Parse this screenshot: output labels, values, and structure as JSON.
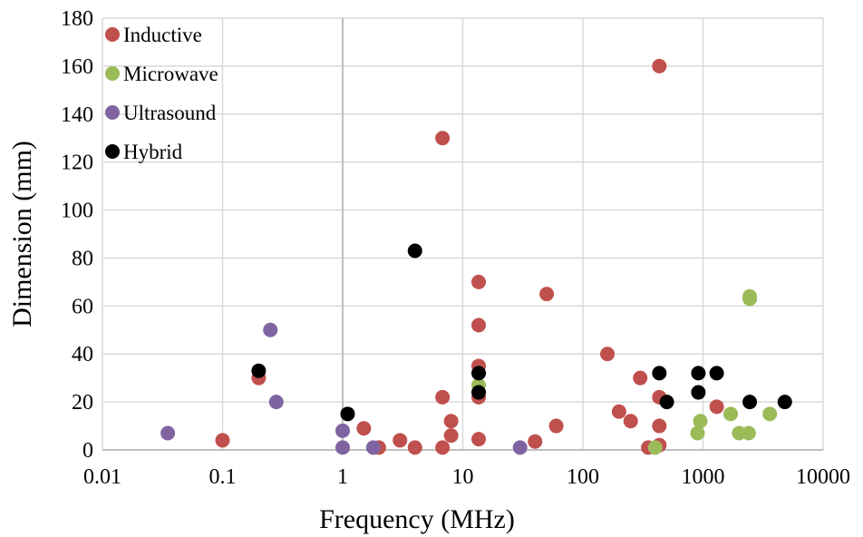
{
  "chart_data": {
    "type": "scatter",
    "xlabel": "Frequency (MHz)",
    "ylabel": "Dimension (mm)",
    "x_scale": "log",
    "xlim": [
      0.01,
      10000
    ],
    "ylim": [
      0,
      180
    ],
    "x_ticks": [
      "0.01",
      "0.1",
      "1",
      "10",
      "100",
      "1000",
      "10000"
    ],
    "y_ticks": [
      "0",
      "20",
      "40",
      "60",
      "80",
      "100",
      "120",
      "140",
      "160",
      "180"
    ],
    "grid": true,
    "legend_position": "top-left",
    "series": [
      {
        "name": "Inductive",
        "color": "#c0504d",
        "points": [
          [
            0.1,
            4
          ],
          [
            0.2,
            30
          ],
          [
            1.5,
            9
          ],
          [
            2,
            1
          ],
          [
            3,
            4
          ],
          [
            4,
            1
          ],
          [
            6.78,
            1
          ],
          [
            6.78,
            22
          ],
          [
            6.78,
            130
          ],
          [
            8,
            6
          ],
          [
            8,
            12
          ],
          [
            13.56,
            4.5
          ],
          [
            13.56,
            22
          ],
          [
            13.56,
            35
          ],
          [
            13.56,
            52
          ],
          [
            13.56,
            70
          ],
          [
            40,
            3.5
          ],
          [
            50,
            65
          ],
          [
            60,
            10
          ],
          [
            160,
            40
          ],
          [
            200,
            16
          ],
          [
            250,
            12
          ],
          [
            300,
            30
          ],
          [
            350,
            1
          ],
          [
            433,
            2
          ],
          [
            433,
            10
          ],
          [
            433,
            22
          ],
          [
            433,
            160
          ],
          [
            1300,
            18
          ]
        ]
      },
      {
        "name": "Microwave",
        "color": "#9bbb59",
        "points": [
          [
            13.56,
            27
          ],
          [
            400,
            1
          ],
          [
            900,
            7
          ],
          [
            950,
            12
          ],
          [
            1700,
            15
          ],
          [
            2000,
            7
          ],
          [
            2400,
            7
          ],
          [
            2450,
            63
          ],
          [
            2450,
            64
          ],
          [
            3600,
            15
          ]
        ]
      },
      {
        "name": "Ultrasound",
        "color": "#8064a2",
        "points": [
          [
            0.035,
            7
          ],
          [
            0.25,
            50
          ],
          [
            0.28,
            20
          ],
          [
            1,
            1
          ],
          [
            1,
            8
          ],
          [
            1.8,
            1
          ],
          [
            30,
            1
          ]
        ]
      },
      {
        "name": "Hybrid",
        "color": "#000000",
        "points": [
          [
            0.2,
            33
          ],
          [
            1.1,
            15
          ],
          [
            4,
            83
          ],
          [
            13.56,
            24
          ],
          [
            13.56,
            32
          ],
          [
            433,
            32
          ],
          [
            500,
            20
          ],
          [
            915,
            24
          ],
          [
            915,
            32
          ],
          [
            1300,
            32
          ],
          [
            2450,
            20
          ],
          [
            4800,
            20
          ]
        ]
      }
    ]
  }
}
